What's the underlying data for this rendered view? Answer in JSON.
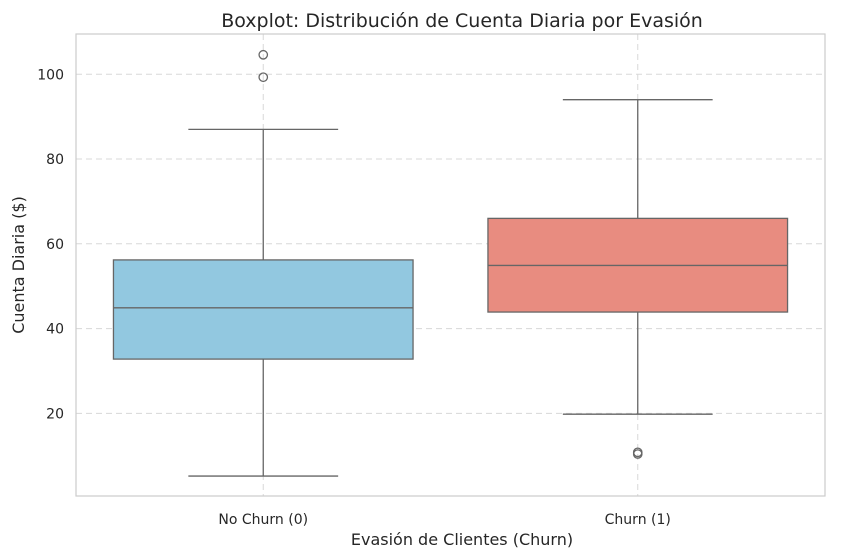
{
  "chart_data": {
    "type": "boxplot",
    "title": "Boxplot: Distribución de Cuenta Diaria por Evasión",
    "xlabel": "Evasión de Clientes (Churn)",
    "ylabel": "Cuenta Diaria ($)",
    "ylim": [
      0.5,
      109.5
    ],
    "yticks": [
      20,
      40,
      60,
      80,
      100
    ],
    "grid": true,
    "categories": [
      "No Churn (0)",
      "Churn (1)"
    ],
    "boxes": [
      {
        "name": "No Churn (0)",
        "color": "#92C8E0",
        "whisker_low": 5.2,
        "q1": 32.8,
        "median": 44.9,
        "q3": 56.2,
        "whisker_high": 87.0,
        "outliers": [
          99.3,
          104.6
        ]
      },
      {
        "name": "Churn (1)",
        "color": "#E88C80",
        "whisker_low": 19.8,
        "q1": 43.9,
        "median": 54.9,
        "q3": 66.0,
        "whisker_high": 94.0,
        "outliers": [
          10.4,
          10.8
        ]
      }
    ]
  }
}
